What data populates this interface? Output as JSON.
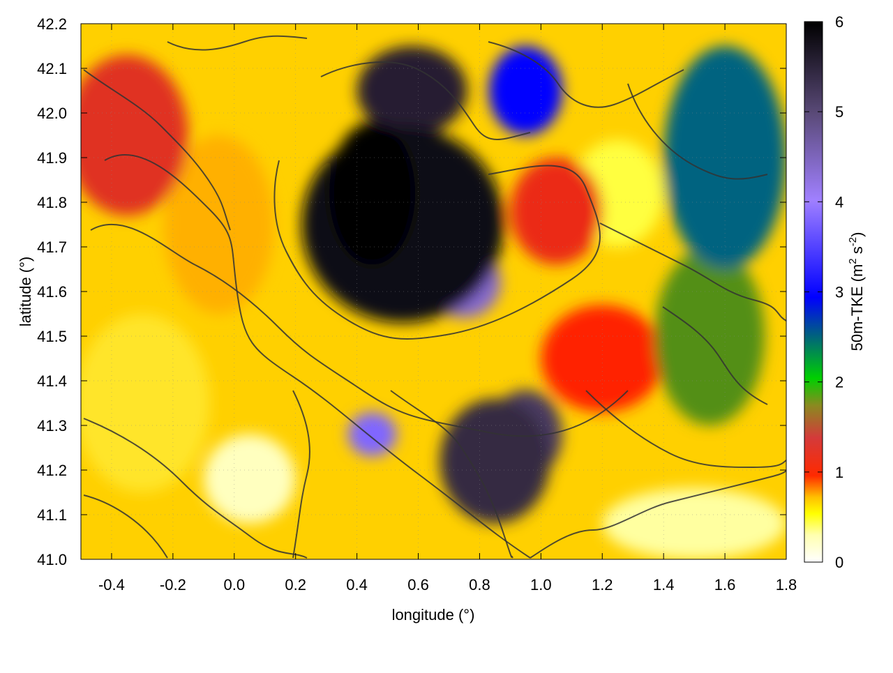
{
  "chart_data": {
    "type": "heatmap",
    "title": "",
    "xlabel": "longitude (°)",
    "ylabel": "latitude (°)",
    "xlim": [
      -0.5,
      1.8
    ],
    "ylim": [
      41.0,
      42.2
    ],
    "xticks": [
      "-0.4",
      "-0.2",
      "0.0",
      "0.2",
      "0.4",
      "0.6",
      "0.8",
      "1.0",
      "1.2",
      "1.4",
      "1.6",
      "1.8"
    ],
    "yticks": [
      "41.0",
      "41.1",
      "41.2",
      "41.3",
      "41.4",
      "41.5",
      "41.6",
      "41.7",
      "41.8",
      "41.9",
      "42.0",
      "42.1",
      "42.2"
    ],
    "grid": true,
    "overlay": "terrain contour lines (dark grey)",
    "colorbar": {
      "label_main": "50m-TKE (m",
      "label_sup1": "2",
      "label_mid": " s",
      "label_sup2": "-2",
      "label_end": ")",
      "range": [
        0,
        6
      ],
      "ticks": [
        "0",
        "1",
        "2",
        "3",
        "4",
        "5",
        "6"
      ],
      "colors": [
        "#ffffff",
        "#ffff00",
        "#ffa500",
        "#ff2000",
        "#d04040",
        "#00cc00",
        "#0000ff",
        "#9f7fff",
        "#4a3a60",
        "#000000"
      ]
    },
    "regions": [
      {
        "lon": 0.55,
        "lat": 41.75,
        "rx": 0.33,
        "ry": 0.22,
        "tke": 5.8
      },
      {
        "lon": 0.45,
        "lat": 41.82,
        "rx": 0.14,
        "ry": 0.16,
        "tke": 6.0
      },
      {
        "lon": 0.75,
        "lat": 41.62,
        "rx": 0.12,
        "ry": 0.08,
        "tke": 4.3
      },
      {
        "lon": 0.58,
        "lat": 42.05,
        "rx": 0.18,
        "ry": 0.1,
        "tke": 5.5
      },
      {
        "lon": 0.85,
        "lat": 41.22,
        "rx": 0.18,
        "ry": 0.14,
        "tke": 5.3
      },
      {
        "lon": 0.95,
        "lat": 41.28,
        "rx": 0.12,
        "ry": 0.1,
        "tke": 5.0
      },
      {
        "lon": 0.45,
        "lat": 41.28,
        "rx": 0.08,
        "ry": 0.05,
        "tke": 3.8
      },
      {
        "lon": -0.35,
        "lat": 41.95,
        "rx": 0.2,
        "ry": 0.18,
        "tke": 1.3
      },
      {
        "lon": -0.3,
        "lat": 41.35,
        "rx": 0.22,
        "ry": 0.2,
        "tke": 0.4
      },
      {
        "lon": -0.05,
        "lat": 41.75,
        "rx": 0.18,
        "ry": 0.2,
        "tke": 0.6
      },
      {
        "lon": 0.05,
        "lat": 41.18,
        "rx": 0.15,
        "ry": 0.1,
        "tke": 0.1
      },
      {
        "lon": 1.25,
        "lat": 41.82,
        "rx": 0.15,
        "ry": 0.12,
        "tke": 0.3
      },
      {
        "lon": 1.05,
        "lat": 41.78,
        "rx": 0.15,
        "ry": 0.12,
        "tke": 1.2
      },
      {
        "lon": 1.6,
        "lat": 41.9,
        "rx": 0.2,
        "ry": 0.25,
        "tke": 2.5
      },
      {
        "lon": 1.55,
        "lat": 41.5,
        "rx": 0.18,
        "ry": 0.2,
        "tke": 1.8
      },
      {
        "lon": 1.5,
        "lat": 41.08,
        "rx": 0.3,
        "ry": 0.08,
        "tke": 0.15
      },
      {
        "lon": 1.2,
        "lat": 41.45,
        "rx": 0.2,
        "ry": 0.12,
        "tke": 1.0
      },
      {
        "lon": 0.95,
        "lat": 42.05,
        "rx": 0.12,
        "ry": 0.1,
        "tke": 3.0
      }
    ]
  }
}
